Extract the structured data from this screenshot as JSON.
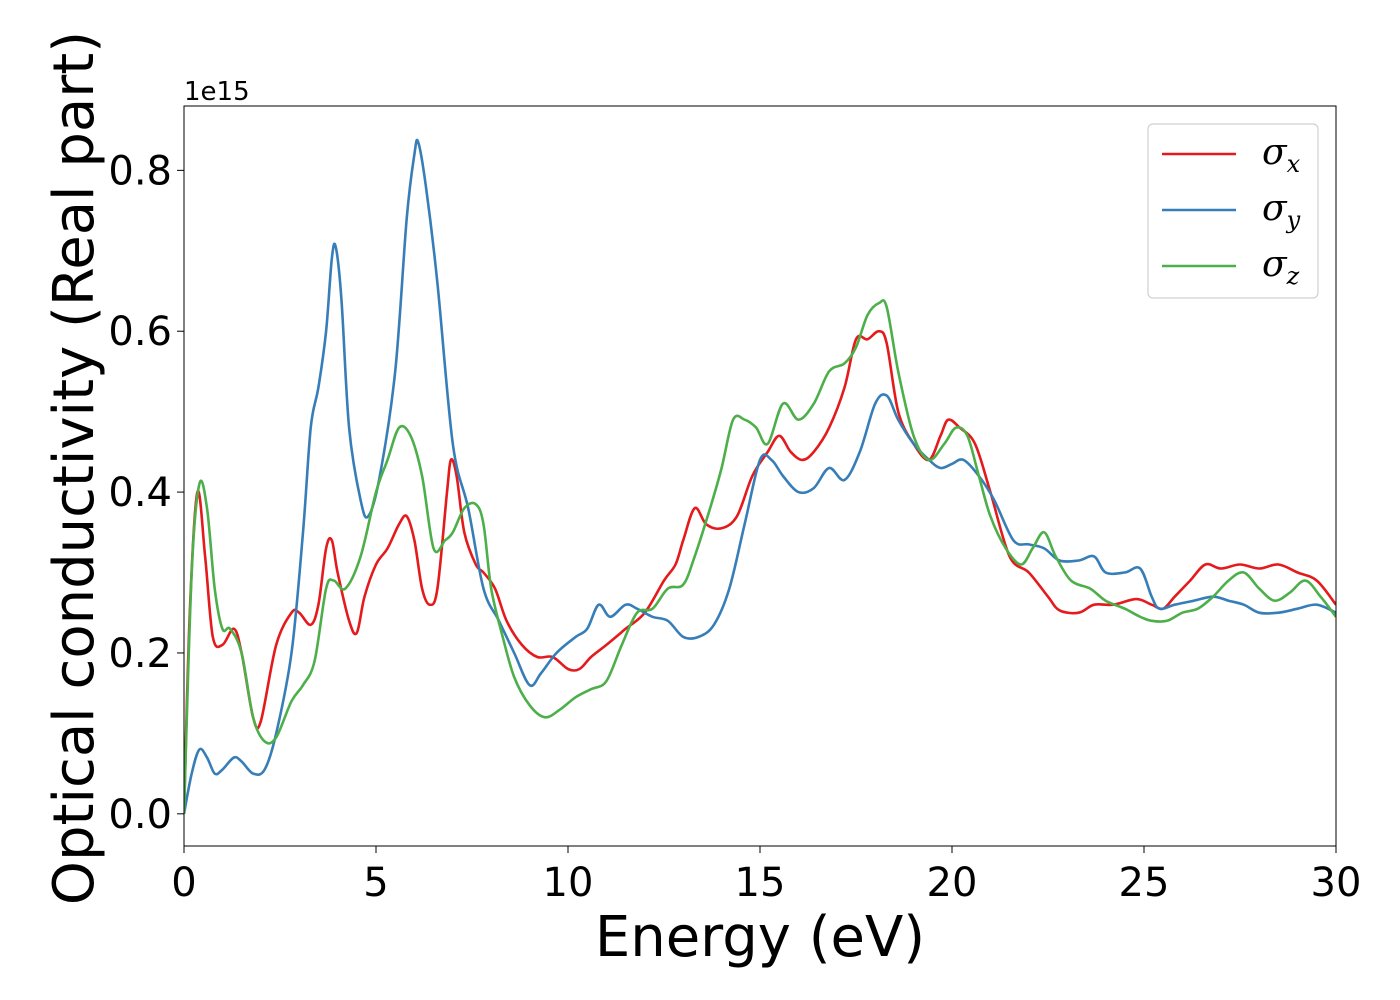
{
  "chart_data": {
    "type": "line",
    "xlabel": "Energy (eV)",
    "ylabel": "Optical conductivity (Real part)",
    "y_offset_label": "1e15",
    "xlim": [
      0,
      30
    ],
    "ylim": [
      -0.04,
      0.88
    ],
    "x_ticks": [
      0,
      5,
      10,
      15,
      20,
      25,
      30
    ],
    "x_tick_labels": [
      "0",
      "5",
      "10",
      "15",
      "20",
      "25",
      "30"
    ],
    "y_ticks": [
      0.0,
      0.2,
      0.4,
      0.6,
      0.8
    ],
    "y_tick_labels": [
      "0.0",
      "0.2",
      "0.4",
      "0.6",
      "0.8"
    ],
    "grid": false,
    "legend_position": "top-right",
    "series": [
      {
        "name": "σ_x",
        "legend_symbol": "σ",
        "legend_subscript": "x",
        "color": "#e41a1c",
        "points": [
          [
            0,
            0
          ],
          [
            0.15,
            0.25
          ],
          [
            0.35,
            0.4
          ],
          [
            0.55,
            0.32
          ],
          [
            0.75,
            0.22
          ],
          [
            1.0,
            0.21
          ],
          [
            1.3,
            0.23
          ],
          [
            1.5,
            0.2
          ],
          [
            1.8,
            0.12
          ],
          [
            2.0,
            0.115
          ],
          [
            2.4,
            0.21
          ],
          [
            2.8,
            0.25
          ],
          [
            3.0,
            0.25
          ],
          [
            3.3,
            0.235
          ],
          [
            3.5,
            0.26
          ],
          [
            3.7,
            0.33
          ],
          [
            3.85,
            0.34
          ],
          [
            4.0,
            0.3
          ],
          [
            4.3,
            0.24
          ],
          [
            4.5,
            0.225
          ],
          [
            4.7,
            0.27
          ],
          [
            5.0,
            0.31
          ],
          [
            5.3,
            0.33
          ],
          [
            5.6,
            0.36
          ],
          [
            5.8,
            0.37
          ],
          [
            6.0,
            0.34
          ],
          [
            6.2,
            0.28
          ],
          [
            6.4,
            0.26
          ],
          [
            6.6,
            0.28
          ],
          [
            6.85,
            0.4
          ],
          [
            6.95,
            0.44
          ],
          [
            7.1,
            0.42
          ],
          [
            7.3,
            0.35
          ],
          [
            7.6,
            0.31
          ],
          [
            7.8,
            0.3
          ],
          [
            8.1,
            0.28
          ],
          [
            8.4,
            0.24
          ],
          [
            8.8,
            0.21
          ],
          [
            9.2,
            0.195
          ],
          [
            9.6,
            0.195
          ],
          [
            10.0,
            0.18
          ],
          [
            10.3,
            0.18
          ],
          [
            10.6,
            0.195
          ],
          [
            11.0,
            0.21
          ],
          [
            11.5,
            0.23
          ],
          [
            12.0,
            0.25
          ],
          [
            12.5,
            0.29
          ],
          [
            12.8,
            0.31
          ],
          [
            13.0,
            0.34
          ],
          [
            13.3,
            0.38
          ],
          [
            13.6,
            0.36
          ],
          [
            14.0,
            0.355
          ],
          [
            14.4,
            0.37
          ],
          [
            14.8,
            0.42
          ],
          [
            15.2,
            0.45
          ],
          [
            15.5,
            0.47
          ],
          [
            15.8,
            0.45
          ],
          [
            16.1,
            0.44
          ],
          [
            16.4,
            0.45
          ],
          [
            16.8,
            0.48
          ],
          [
            17.2,
            0.53
          ],
          [
            17.5,
            0.59
          ],
          [
            17.8,
            0.59
          ],
          [
            18.1,
            0.6
          ],
          [
            18.3,
            0.585
          ],
          [
            18.6,
            0.5
          ],
          [
            19.0,
            0.46
          ],
          [
            19.4,
            0.44
          ],
          [
            19.7,
            0.47
          ],
          [
            19.9,
            0.49
          ],
          [
            20.2,
            0.48
          ],
          [
            20.6,
            0.46
          ],
          [
            21.0,
            0.4
          ],
          [
            21.5,
            0.32
          ],
          [
            22.0,
            0.3
          ],
          [
            22.5,
            0.27
          ],
          [
            22.8,
            0.253
          ],
          [
            23.3,
            0.25
          ],
          [
            23.7,
            0.26
          ],
          [
            24.2,
            0.26
          ],
          [
            24.8,
            0.267
          ],
          [
            25.2,
            0.26
          ],
          [
            25.5,
            0.255
          ],
          [
            25.8,
            0.27
          ],
          [
            26.2,
            0.29
          ],
          [
            26.6,
            0.31
          ],
          [
            27.0,
            0.305
          ],
          [
            27.5,
            0.31
          ],
          [
            28.0,
            0.305
          ],
          [
            28.5,
            0.31
          ],
          [
            29.0,
            0.3
          ],
          [
            29.5,
            0.29
          ],
          [
            30.0,
            0.26
          ]
        ]
      },
      {
        "name": "σ_y",
        "legend_symbol": "σ",
        "legend_subscript": "y",
        "color": "#377eb8",
        "points": [
          [
            0,
            0
          ],
          [
            0.2,
            0.05
          ],
          [
            0.4,
            0.08
          ],
          [
            0.6,
            0.07
          ],
          [
            0.8,
            0.05
          ],
          [
            1.0,
            0.055
          ],
          [
            1.3,
            0.07
          ],
          [
            1.5,
            0.065
          ],
          [
            1.8,
            0.05
          ],
          [
            2.1,
            0.055
          ],
          [
            2.4,
            0.1
          ],
          [
            2.8,
            0.2
          ],
          [
            3.1,
            0.35
          ],
          [
            3.3,
            0.48
          ],
          [
            3.5,
            0.53
          ],
          [
            3.7,
            0.6
          ],
          [
            3.85,
            0.69
          ],
          [
            3.95,
            0.705
          ],
          [
            4.1,
            0.64
          ],
          [
            4.3,
            0.48
          ],
          [
            4.6,
            0.39
          ],
          [
            4.8,
            0.37
          ],
          [
            5.1,
            0.42
          ],
          [
            5.5,
            0.55
          ],
          [
            5.8,
            0.74
          ],
          [
            6.0,
            0.82
          ],
          [
            6.1,
            0.835
          ],
          [
            6.3,
            0.78
          ],
          [
            6.6,
            0.66
          ],
          [
            7.0,
            0.46
          ],
          [
            7.4,
            0.38
          ],
          [
            7.8,
            0.28
          ],
          [
            8.2,
            0.24
          ],
          [
            8.6,
            0.2
          ],
          [
            9.0,
            0.16
          ],
          [
            9.3,
            0.175
          ],
          [
            9.7,
            0.2
          ],
          [
            10.2,
            0.22
          ],
          [
            10.5,
            0.23
          ],
          [
            10.8,
            0.26
          ],
          [
            11.1,
            0.245
          ],
          [
            11.5,
            0.26
          ],
          [
            11.8,
            0.255
          ],
          [
            12.2,
            0.245
          ],
          [
            12.6,
            0.24
          ],
          [
            13.0,
            0.22
          ],
          [
            13.4,
            0.22
          ],
          [
            13.8,
            0.235
          ],
          [
            14.2,
            0.28
          ],
          [
            14.6,
            0.36
          ],
          [
            15.0,
            0.44
          ],
          [
            15.3,
            0.44
          ],
          [
            15.6,
            0.42
          ],
          [
            16.0,
            0.4
          ],
          [
            16.4,
            0.405
          ],
          [
            16.8,
            0.43
          ],
          [
            17.2,
            0.415
          ],
          [
            17.6,
            0.45
          ],
          [
            18.0,
            0.51
          ],
          [
            18.3,
            0.52
          ],
          [
            18.6,
            0.49
          ],
          [
            19.0,
            0.46
          ],
          [
            19.4,
            0.44
          ],
          [
            19.7,
            0.43
          ],
          [
            20.0,
            0.435
          ],
          [
            20.3,
            0.44
          ],
          [
            20.7,
            0.42
          ],
          [
            21.1,
            0.39
          ],
          [
            21.6,
            0.34
          ],
          [
            22.0,
            0.335
          ],
          [
            22.4,
            0.33
          ],
          [
            22.8,
            0.315
          ],
          [
            23.3,
            0.315
          ],
          [
            23.7,
            0.32
          ],
          [
            24.0,
            0.3
          ],
          [
            24.5,
            0.3
          ],
          [
            24.9,
            0.305
          ],
          [
            25.2,
            0.27
          ],
          [
            25.4,
            0.255
          ],
          [
            25.8,
            0.26
          ],
          [
            26.3,
            0.265
          ],
          [
            26.8,
            0.27
          ],
          [
            27.2,
            0.265
          ],
          [
            27.6,
            0.26
          ],
          [
            28.0,
            0.25
          ],
          [
            28.5,
            0.25
          ],
          [
            29.0,
            0.255
          ],
          [
            29.5,
            0.26
          ],
          [
            30.0,
            0.25
          ]
        ]
      },
      {
        "name": "σ_z",
        "legend_symbol": "σ",
        "legend_subscript": "z",
        "color": "#4daf4a",
        "points": [
          [
            0,
            0
          ],
          [
            0.2,
            0.3
          ],
          [
            0.4,
            0.41
          ],
          [
            0.6,
            0.38
          ],
          [
            0.8,
            0.28
          ],
          [
            1.0,
            0.23
          ],
          [
            1.2,
            0.23
          ],
          [
            1.5,
            0.2
          ],
          [
            1.8,
            0.12
          ],
          [
            2.1,
            0.09
          ],
          [
            2.4,
            0.095
          ],
          [
            2.8,
            0.14
          ],
          [
            3.1,
            0.16
          ],
          [
            3.4,
            0.19
          ],
          [
            3.7,
            0.28
          ],
          [
            3.9,
            0.29
          ],
          [
            4.2,
            0.28
          ],
          [
            4.6,
            0.32
          ],
          [
            5.0,
            0.4
          ],
          [
            5.3,
            0.44
          ],
          [
            5.6,
            0.48
          ],
          [
            5.9,
            0.47
          ],
          [
            6.2,
            0.42
          ],
          [
            6.5,
            0.33
          ],
          [
            6.8,
            0.34
          ],
          [
            7.0,
            0.35
          ],
          [
            7.3,
            0.38
          ],
          [
            7.6,
            0.385
          ],
          [
            7.8,
            0.36
          ],
          [
            8.0,
            0.28
          ],
          [
            8.3,
            0.22
          ],
          [
            8.6,
            0.17
          ],
          [
            9.0,
            0.135
          ],
          [
            9.4,
            0.12
          ],
          [
            9.8,
            0.13
          ],
          [
            10.2,
            0.145
          ],
          [
            10.6,
            0.155
          ],
          [
            11.0,
            0.165
          ],
          [
            11.4,
            0.21
          ],
          [
            11.8,
            0.25
          ],
          [
            12.2,
            0.255
          ],
          [
            12.6,
            0.28
          ],
          [
            13.0,
            0.285
          ],
          [
            13.3,
            0.32
          ],
          [
            13.7,
            0.38
          ],
          [
            14.0,
            0.43
          ],
          [
            14.3,
            0.49
          ],
          [
            14.6,
            0.49
          ],
          [
            14.9,
            0.48
          ],
          [
            15.2,
            0.46
          ],
          [
            15.6,
            0.51
          ],
          [
            16.0,
            0.49
          ],
          [
            16.4,
            0.51
          ],
          [
            16.8,
            0.55
          ],
          [
            17.2,
            0.56
          ],
          [
            17.5,
            0.58
          ],
          [
            17.8,
            0.62
          ],
          [
            18.1,
            0.635
          ],
          [
            18.3,
            0.63
          ],
          [
            18.6,
            0.55
          ],
          [
            19.0,
            0.47
          ],
          [
            19.4,
            0.44
          ],
          [
            19.8,
            0.46
          ],
          [
            20.1,
            0.48
          ],
          [
            20.4,
            0.47
          ],
          [
            20.7,
            0.42
          ],
          [
            21.0,
            0.37
          ],
          [
            21.4,
            0.33
          ],
          [
            21.8,
            0.31
          ],
          [
            22.1,
            0.33
          ],
          [
            22.4,
            0.35
          ],
          [
            22.7,
            0.32
          ],
          [
            23.1,
            0.29
          ],
          [
            23.6,
            0.28
          ],
          [
            24.0,
            0.265
          ],
          [
            24.5,
            0.255
          ],
          [
            24.9,
            0.245
          ],
          [
            25.2,
            0.24
          ],
          [
            25.6,
            0.24
          ],
          [
            26.0,
            0.25
          ],
          [
            26.4,
            0.255
          ],
          [
            26.8,
            0.27
          ],
          [
            27.2,
            0.29
          ],
          [
            27.6,
            0.3
          ],
          [
            28.0,
            0.28
          ],
          [
            28.4,
            0.265
          ],
          [
            28.8,
            0.275
          ],
          [
            29.2,
            0.29
          ],
          [
            29.6,
            0.27
          ],
          [
            30.0,
            0.245
          ]
        ]
      }
    ]
  }
}
